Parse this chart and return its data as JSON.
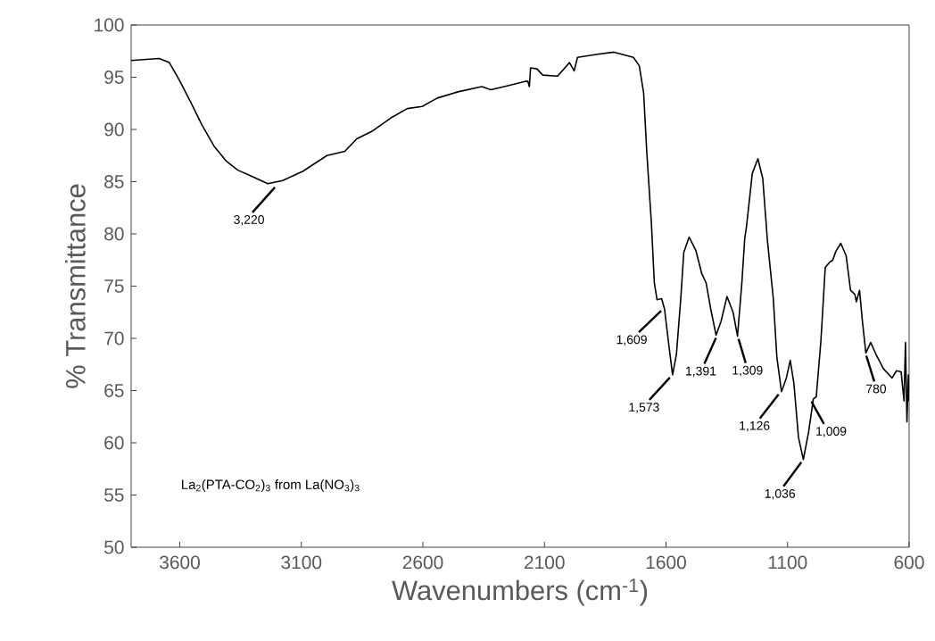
{
  "chart_data": {
    "type": "line",
    "xlabel": "Wavenumbers (cm$^{-1}$)",
    "ylabel": "% Transmittance",
    "xlim": [
      3800,
      600
    ],
    "ylim": [
      50,
      100
    ],
    "xticks": [
      3600,
      3100,
      2600,
      2100,
      1600,
      1100,
      600
    ],
    "yticks": [
      50,
      55,
      60,
      65,
      70,
      75,
      80,
      85,
      90,
      95,
      100
    ],
    "x": [
      3800,
      3685,
      3643,
      3606,
      3557,
      3508,
      3459,
      3410,
      3361,
      3312,
      3238,
      3177,
      3093,
      2995,
      2921,
      2872,
      2811,
      2725,
      2664,
      2603,
      2541,
      2456,
      2358,
      2321,
      2284,
      2180,
      2168,
      2162,
      2157,
      2131,
      2107,
      2046,
      1997,
      1978,
      1964,
      1881,
      1814,
      1734,
      1710,
      1692,
      1679,
      1660,
      1648,
      1637,
      1618,
      1606,
      1587,
      1573,
      1557,
      1539,
      1527,
      1505,
      1477,
      1453,
      1435,
      1416,
      1394,
      1374,
      1349,
      1324,
      1306,
      1288,
      1276,
      1269,
      1245,
      1222,
      1202,
      1183,
      1159,
      1144,
      1125,
      1105,
      1089,
      1074,
      1055,
      1035,
      1013,
      994,
      982,
      963,
      945,
      926,
      914,
      902,
      881,
      859,
      841,
      823,
      817,
      804,
      792,
      778,
      758,
      737,
      706,
      670,
      652,
      633,
      621,
      615,
      609,
      603,
      600
    ],
    "series": [
      {
        "color": "#000000",
        "values": [
          96.6,
          96.8,
          96.4,
          94.9,
          92.7,
          90.4,
          88.4,
          87.0,
          86.1,
          85.6,
          84.8,
          85.1,
          86.0,
          87.5,
          87.9,
          89.1,
          89.8,
          91.2,
          92.0,
          92.2,
          93.0,
          93.6,
          94.1,
          93.8,
          94.0,
          94.6,
          94.6,
          94.1,
          95.9,
          95.8,
          95.2,
          95.1,
          96.4,
          95.6,
          96.9,
          97.2,
          97.4,
          96.9,
          96.1,
          93.5,
          87.8,
          81.0,
          75.3,
          73.7,
          73.8,
          72.8,
          69.1,
          66.5,
          68.5,
          73.9,
          78.2,
          79.7,
          78.4,
          76.2,
          75.3,
          72.8,
          70.3,
          71.6,
          74.0,
          72.5,
          70.2,
          75.3,
          79.6,
          80.7,
          85.8,
          87.2,
          85.3,
          79.4,
          73.9,
          68.2,
          64.9,
          66.2,
          67.9,
          65.7,
          60.5,
          58.4,
          61.1,
          64.2,
          64.4,
          69.7,
          76.8,
          77.3,
          77.5,
          78.3,
          79.1,
          77.9,
          74.6,
          74.2,
          73.5,
          74.6,
          71.6,
          68.6,
          69.6,
          68.5,
          67.1,
          66.2,
          66.9,
          66.8,
          64.0,
          69.6,
          62.0,
          66.5,
          64.0
        ]
      }
    ],
    "annotations": [
      {
        "text": "3,220",
        "x": 3220,
        "y": 84.8
      },
      {
        "text": "1,609",
        "x": 1609,
        "y": 72.8
      },
      {
        "text": "1,573",
        "x": 1573,
        "y": 66.5
      },
      {
        "text": "1,391",
        "x": 1391,
        "y": 70.3
      },
      {
        "text": "1,309",
        "x": 1309,
        "y": 70.2
      },
      {
        "text": "1,126",
        "x": 1126,
        "y": 64.9
      },
      {
        "text": "1,036",
        "x": 1036,
        "y": 58.4
      },
      {
        "text": "1,009",
        "x": 1009,
        "y": 64.2
      },
      {
        "text": "780",
        "x": 780,
        "y": 68.6
      },
      "La$_{2}$(PTA-CO$_{2}$)$_{3}$ from La(NO$_{3}$)$_{3}$"
    ]
  }
}
